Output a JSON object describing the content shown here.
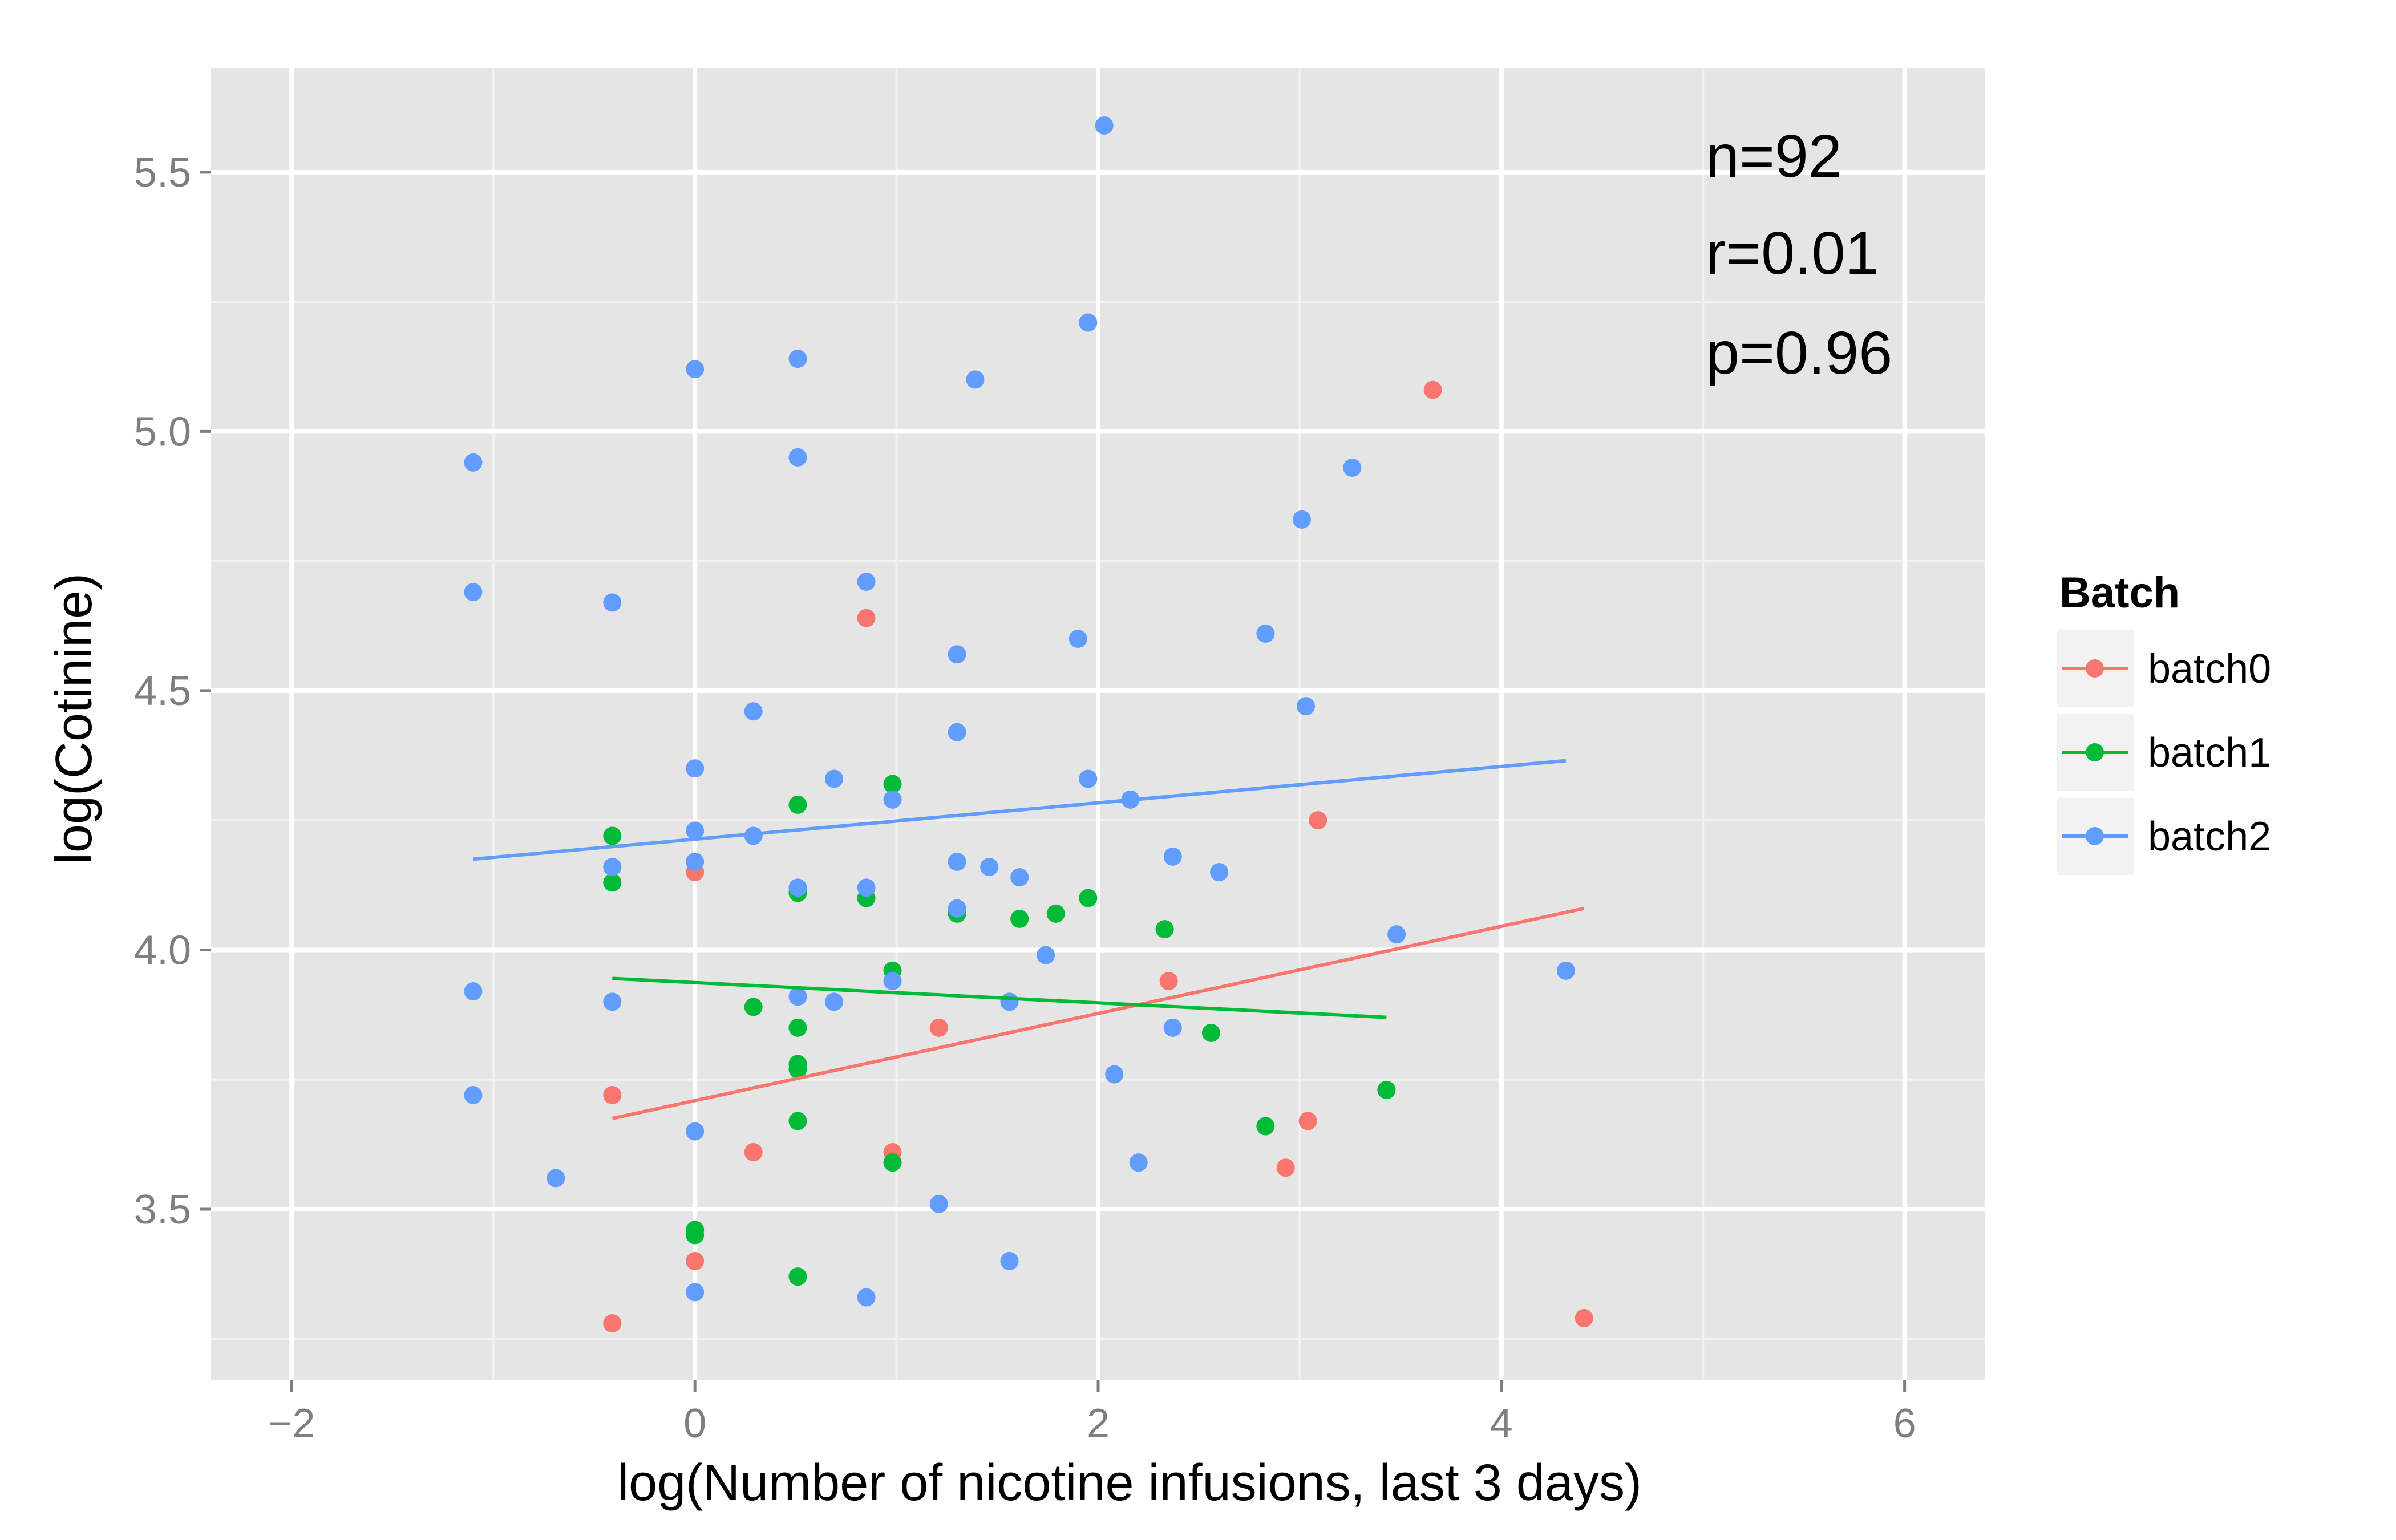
{
  "chart_data": {
    "type": "scatter",
    "title": "",
    "xlabel": "log(Number of nicotine infusions, last 3 days)",
    "ylabel": "log(Cotinine)",
    "xlim": [
      -2.4,
      6.4
    ],
    "ylim": [
      3.17,
      5.7
    ],
    "xticks": [
      -2,
      0,
      2,
      4,
      6
    ],
    "xtick_labels": [
      "−2",
      "0",
      "2",
      "4",
      "6"
    ],
    "yticks": [
      3.5,
      4.0,
      4.5,
      5.0,
      5.5
    ],
    "ytick_labels": [
      "3.5",
      "4.0",
      "4.5",
      "5.0",
      "5.5"
    ],
    "grid": true,
    "annotations": [
      "n=92",
      "r=0.01",
      "p=0.96"
    ],
    "legend": {
      "title": "Batch",
      "position": "right",
      "entries": [
        "batch0",
        "batch1",
        "batch2"
      ]
    },
    "series": [
      {
        "name": "batch0",
        "color": "#F8766D",
        "points": [
          [
            -0.41,
            3.72
          ],
          [
            -0.41,
            3.28
          ],
          [
            0,
            4.15
          ],
          [
            0,
            3.4
          ],
          [
            0.29,
            3.61
          ],
          [
            0.85,
            4.64
          ],
          [
            0.98,
            3.61
          ],
          [
            1.21,
            3.85
          ],
          [
            2.35,
            3.94
          ],
          [
            2.93,
            3.58
          ],
          [
            3.04,
            3.67
          ],
          [
            3.09,
            4.25
          ],
          [
            3.66,
            5.08
          ],
          [
            4.41,
            3.29
          ]
        ],
        "fit": [
          [
            -0.41,
            3.675
          ],
          [
            4.41,
            4.08
          ]
        ]
      },
      {
        "name": "batch1",
        "color": "#00BA38",
        "points": [
          [
            -0.41,
            4.22
          ],
          [
            -0.41,
            4.13
          ],
          [
            0,
            3.46
          ],
          [
            0,
            3.45
          ],
          [
            0.29,
            3.89
          ],
          [
            0.51,
            4.28
          ],
          [
            0.51,
            4.11
          ],
          [
            0.51,
            3.85
          ],
          [
            0.51,
            3.78
          ],
          [
            0.51,
            3.77
          ],
          [
            0.51,
            3.67
          ],
          [
            0.51,
            3.37
          ],
          [
            0.85,
            4.1
          ],
          [
            0.98,
            4.32
          ],
          [
            0.98,
            3.96
          ],
          [
            0.98,
            3.59
          ],
          [
            1.3,
            4.07
          ],
          [
            1.61,
            4.06
          ],
          [
            1.79,
            4.07
          ],
          [
            1.95,
            4.1
          ],
          [
            2.33,
            4.04
          ],
          [
            2.56,
            3.84
          ],
          [
            2.83,
            3.66
          ],
          [
            3.43,
            3.73
          ]
        ],
        "fit": [
          [
            -0.41,
            3.945
          ],
          [
            3.43,
            3.87
          ]
        ]
      },
      {
        "name": "batch2",
        "color": "#619CFF",
        "points": [
          [
            -1.1,
            4.94
          ],
          [
            -1.1,
            4.69
          ],
          [
            -1.1,
            3.92
          ],
          [
            -1.1,
            3.72
          ],
          [
            -0.69,
            3.56
          ],
          [
            -0.41,
            4.67
          ],
          [
            -0.41,
            4.16
          ],
          [
            -0.41,
            3.9
          ],
          [
            0,
            5.12
          ],
          [
            0,
            4.35
          ],
          [
            0,
            4.23
          ],
          [
            0,
            4.17
          ],
          [
            0,
            3.65
          ],
          [
            0,
            3.34
          ],
          [
            0.29,
            4.46
          ],
          [
            0.29,
            4.22
          ],
          [
            0.51,
            5.14
          ],
          [
            0.51,
            4.95
          ],
          [
            0.51,
            4.12
          ],
          [
            0.51,
            3.91
          ],
          [
            0.69,
            4.33
          ],
          [
            0.69,
            3.9
          ],
          [
            0.85,
            4.71
          ],
          [
            0.85,
            4.12
          ],
          [
            0.85,
            3.33
          ],
          [
            0.98,
            4.29
          ],
          [
            0.98,
            3.94
          ],
          [
            1.21,
            3.51
          ],
          [
            1.3,
            4.57
          ],
          [
            1.3,
            4.42
          ],
          [
            1.3,
            4.17
          ],
          [
            1.3,
            4.08
          ],
          [
            1.39,
            5.1
          ],
          [
            1.46,
            4.16
          ],
          [
            1.56,
            3.9
          ],
          [
            1.56,
            3.4
          ],
          [
            1.61,
            4.14
          ],
          [
            1.74,
            3.99
          ],
          [
            1.9,
            4.6
          ],
          [
            1.95,
            5.21
          ],
          [
            1.95,
            4.33
          ],
          [
            2.03,
            5.59
          ],
          [
            2.08,
            3.76
          ],
          [
            2.16,
            4.29
          ],
          [
            2.2,
            3.59
          ],
          [
            2.37,
            4.18
          ],
          [
            2.37,
            3.85
          ],
          [
            2.6,
            4.15
          ],
          [
            2.83,
            4.61
          ],
          [
            3.01,
            4.83
          ],
          [
            3.03,
            4.47
          ],
          [
            3.26,
            4.93
          ],
          [
            3.48,
            4.03
          ],
          [
            4.32,
            3.96
          ]
        ],
        "fit": [
          [
            -1.1,
            4.175
          ],
          [
            4.32,
            4.365
          ]
        ]
      }
    ]
  }
}
